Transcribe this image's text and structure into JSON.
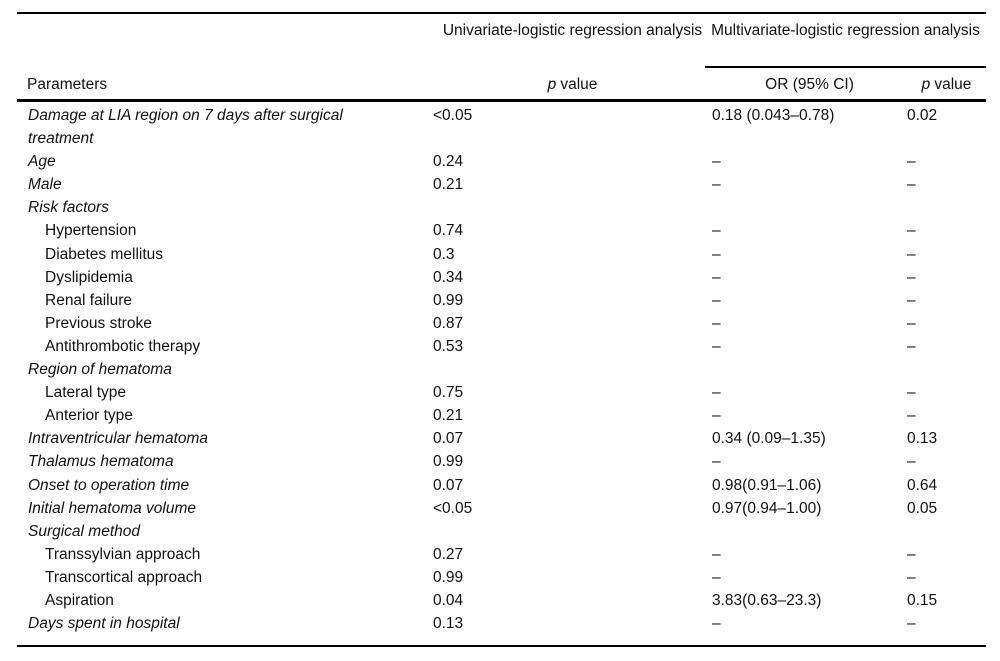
{
  "table": {
    "header": {
      "parameters_label": "Parameters",
      "univariate_group": "Univariate-logistic regression analysis",
      "multivariate_group": "Multivariate-logistic regression analysis",
      "p_label": "p",
      "value_label": "value",
      "or_ci_label": "OR (95% CI)"
    },
    "rows": [
      {
        "parameter": "Damage at LIA region on 7 days after surgical treatment",
        "uni_p": "<0.05",
        "or_ci": "0.18 (0.043–0.78)",
        "multi_p": "0.02"
      },
      {
        "parameter": "Age",
        "uni_p": "0.24",
        "or_ci": "–",
        "multi_p": "–"
      },
      {
        "parameter": "Male",
        "uni_p": "0.21",
        "or_ci": "–",
        "multi_p": "–"
      },
      {
        "parameter": "Risk factors",
        "uni_p": "",
        "or_ci": "",
        "multi_p": ""
      },
      {
        "parameter": "Hypertension",
        "uni_p": "0.74",
        "or_ci": "–",
        "multi_p": "–"
      },
      {
        "parameter": "Diabetes mellitus",
        "uni_p": "0.3",
        "or_ci": "–",
        "multi_p": "–"
      },
      {
        "parameter": "Dyslipidemia",
        "uni_p": "0.34",
        "or_ci": "–",
        "multi_p": "–"
      },
      {
        "parameter": "Renal failure",
        "uni_p": "0.99",
        "or_ci": "–",
        "multi_p": "–"
      },
      {
        "parameter": "Previous stroke",
        "uni_p": "0.87",
        "or_ci": "–",
        "multi_p": "–"
      },
      {
        "parameter": "Antithrombotic therapy",
        "uni_p": "0.53",
        "or_ci": "–",
        "multi_p": "–"
      },
      {
        "parameter": "Region of hematoma",
        "uni_p": "",
        "or_ci": "",
        "multi_p": ""
      },
      {
        "parameter": "Lateral type",
        "uni_p": "0.75",
        "or_ci": "–",
        "multi_p": "–"
      },
      {
        "parameter": "Anterior type",
        "uni_p": "0.21",
        "or_ci": "–",
        "multi_p": "–"
      },
      {
        "parameter": "Intraventricular hematoma",
        "uni_p": "0.07",
        "or_ci": "0.34 (0.09–1.35)",
        "multi_p": "0.13"
      },
      {
        "parameter": "Thalamus hematoma",
        "uni_p": "0.99",
        "or_ci": "–",
        "multi_p": "–"
      },
      {
        "parameter": "Onset to operation time",
        "uni_p": "0.07",
        "or_ci": "0.98(0.91–1.06)",
        "multi_p": "0.64"
      },
      {
        "parameter": "Initial hematoma volume",
        "uni_p": "<0.05",
        "or_ci": "0.97(0.94–1.00)",
        "multi_p": "0.05"
      },
      {
        "parameter": "Surgical method",
        "uni_p": "",
        "or_ci": "",
        "multi_p": ""
      },
      {
        "parameter": "Transsylvian approach",
        "uni_p": "0.27",
        "or_ci": "–",
        "multi_p": "–"
      },
      {
        "parameter": "Transcortical approach",
        "uni_p": "0.99",
        "or_ci": "–",
        "multi_p": "–"
      },
      {
        "parameter": "Aspiration",
        "uni_p": "0.04",
        "or_ci": "3.83(0.63–23.3)",
        "multi_p": "0.15"
      },
      {
        "parameter": "Days spent in hospital",
        "uni_p": "0.13",
        "or_ci": "–",
        "multi_p": "–"
      }
    ]
  },
  "colors": {
    "text": "#111111",
    "rule": "#000000",
    "background": "#ffffff"
  }
}
